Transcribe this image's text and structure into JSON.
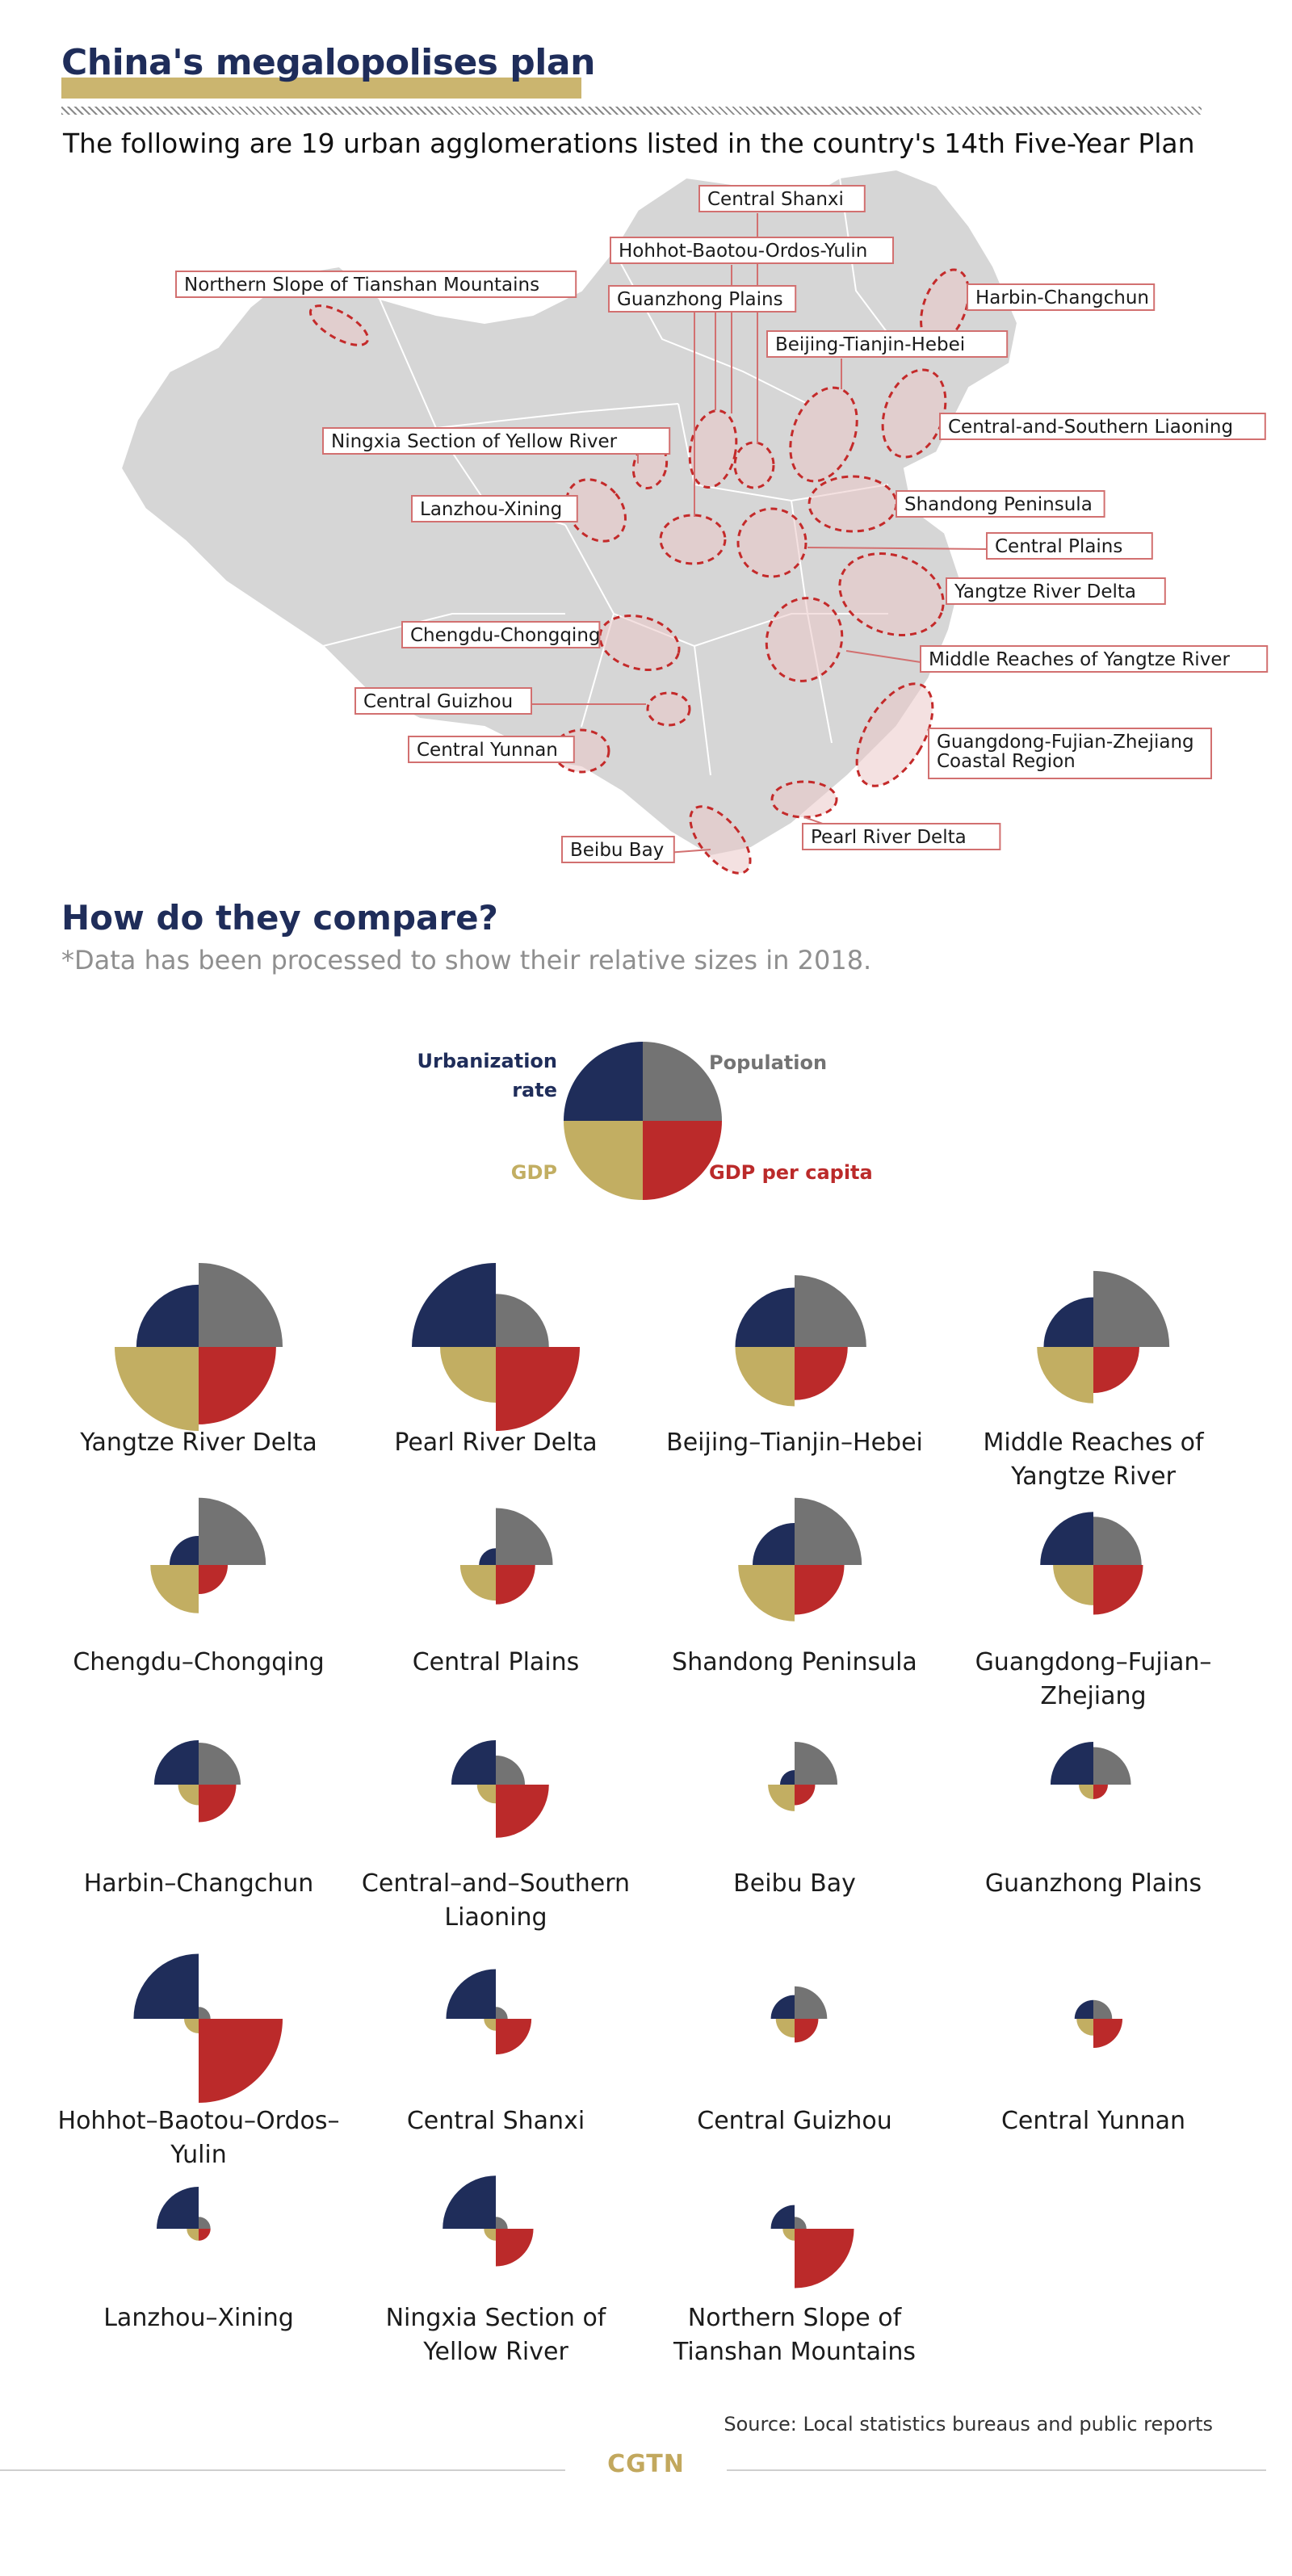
{
  "header": {
    "title": "China's megalopolises plan",
    "subtitle": "The following are 19 urban agglomerations listed in the country's 14th Five-Year Plan"
  },
  "map": {
    "labels": [
      "Central Shanxi",
      "Hohhot-Baotou-Ordos-Yulin",
      "Northern Slope of Tianshan Mountains",
      "Guanzhong Plains",
      "Harbin-Changchun",
      "Beijing-Tianjin-Hebei",
      "Central-and-Southern Liaoning",
      "Ningxia Section of Yellow River",
      "Lanzhou-Xining",
      "Shandong Peninsula",
      "Central Plains",
      "Yangtze River Delta",
      "Chengdu-Chongqing",
      "Middle Reaches of Yangtze River",
      "Central Guizhou",
      "Guangdong-Fujian-Zhejiang",
      "Coastal Region",
      "Central Yunnan",
      "Pearl River Delta",
      "Beibu Bay"
    ]
  },
  "compare": {
    "title": "How do they compare?",
    "note": "*Data has been processed to show their relative sizes in 2018."
  },
  "legend": {
    "urbanization_line1": "Urbanization",
    "urbanization_line2": "rate",
    "population": "Population",
    "gdp": "GDP",
    "gdp_per_capita": "GDP per capita"
  },
  "chart_data": {
    "type": "rose",
    "note": "Relative sizes (processed); values are normalized 0-1 per metric",
    "metrics": [
      "Urbanization rate",
      "Population",
      "GDP",
      "GDP per capita"
    ],
    "colors": {
      "Urbanization rate": "#1f2d5a",
      "Population": "#737373",
      "GDP": "#c2ae62",
      "GDP per capita": "#bb2a2a"
    },
    "cities": [
      {
        "label": "Yangtze River Delta",
        "values": {
          "Urbanization rate": 0.55,
          "Population": 1.0,
          "GDP": 1.0,
          "GDP per capita": 0.85
        }
      },
      {
        "label": "Pearl River Delta",
        "values": {
          "Urbanization rate": 1.0,
          "Population": 0.4,
          "GDP": 0.44,
          "GDP per capita": 1.0
        }
      },
      {
        "label": "Beijing–Tianjin–Hebei",
        "values": {
          "Urbanization rate": 0.5,
          "Population": 0.73,
          "GDP": 0.5,
          "GDP per capita": 0.4
        }
      },
      {
        "label": "Middle Reaches of\nYangtze River",
        "values": {
          "Urbanization rate": 0.35,
          "Population": 0.82,
          "GDP": 0.45,
          "GDP per capita": 0.3
        }
      },
      {
        "label": "Chengdu–Chongqing",
        "values": {
          "Urbanization rate": 0.12,
          "Population": 0.64,
          "GDP": 0.33,
          "GDP per capita": 0.12
        }
      },
      {
        "label": "Central Plains",
        "values": {
          "Urbanization rate": 0.04,
          "Population": 0.46,
          "GDP": 0.18,
          "GDP per capita": 0.22
        }
      },
      {
        "label": "Shandong Peninsula",
        "values": {
          "Urbanization rate": 0.25,
          "Population": 0.64,
          "GDP": 0.45,
          "GDP per capita": 0.35
        }
      },
      {
        "label": "Guangdong–Fujian–\nZhejiang",
        "values": {
          "Urbanization rate": 0.4,
          "Population": 0.33,
          "GDP": 0.23,
          "GDP per capita": 0.35
        }
      },
      {
        "label": "Harbin–Changchun",
        "values": {
          "Urbanization rate": 0.28,
          "Population": 0.25,
          "GDP": 0.06,
          "GDP per capita": 0.2
        }
      },
      {
        "label": "Central–and–Southern Liaoning",
        "values": {
          "Urbanization rate": 0.28,
          "Population": 0.12,
          "GDP": 0.05,
          "GDP per capita": 0.4
        }
      },
      {
        "label": "Beibu Bay",
        "values": {
          "Urbanization rate": 0.03,
          "Population": 0.26,
          "GDP": 0.1,
          "GDP per capita": 0.06
        }
      },
      {
        "label": "Guanzhong Plains",
        "values": {
          "Urbanization rate": 0.26,
          "Population": 0.2,
          "GDP": 0.03,
          "GDP per capita": 0.03
        }
      },
      {
        "label": "Hohhot–Baotou–Ordos–Yulin",
        "values": {
          "Urbanization rate": 0.6,
          "Population": 0.02,
          "GDP": 0.03,
          "GDP per capita": 1.0
        }
      },
      {
        "label": "Central Shanxi",
        "values": {
          "Urbanization rate": 0.35,
          "Population": 0.02,
          "GDP": 0.02,
          "GDP per capita": 0.18
        }
      },
      {
        "label": "Central Guizhou",
        "values": {
          "Urbanization rate": 0.08,
          "Population": 0.15,
          "GDP": 0.05,
          "GDP per capita": 0.08
        }
      },
      {
        "label": "Central Yunnan",
        "values": {
          "Urbanization rate": 0.05,
          "Population": 0.05,
          "GDP": 0.04,
          "GDP per capita": 0.12
        }
      },
      {
        "label": "Lanzhou–Xining",
        "values": {
          "Urbanization rate": 0.25,
          "Population": 0.02,
          "GDP": 0.02,
          "GDP per capita": 0.02
        }
      },
      {
        "label": "Ningxia Section of\nYellow River",
        "values": {
          "Urbanization rate": 0.4,
          "Population": 0.02,
          "GDP": 0.02,
          "GDP per capita": 0.2
        }
      },
      {
        "label": "Northern Slope of\nTianshan Mountains",
        "values": {
          "Urbanization rate": 0.08,
          "Population": 0.02,
          "GDP": 0.02,
          "GDP per capita": 0.5
        }
      }
    ]
  },
  "footer": {
    "source": "Source: Local statistics bureaus and public reports",
    "brand": "CGTN"
  }
}
